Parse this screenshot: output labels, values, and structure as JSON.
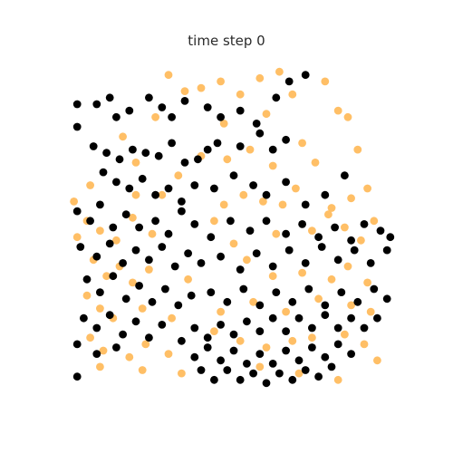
{
  "chart_data": {
    "type": "scatter",
    "title": "time step 0",
    "xlabel": "",
    "ylabel": "",
    "axes_visible": false,
    "grid": false,
    "legend": "none",
    "xlim": [
      0,
      1
    ],
    "ylim": [
      0,
      1
    ],
    "series": [
      {
        "color": "#000000",
        "points": [
          [
            0.02,
            0.88
          ],
          [
            0.08,
            0.88
          ],
          [
            0.12,
            0.9
          ],
          [
            0.14,
            0.84
          ],
          [
            0.18,
            0.86
          ],
          [
            0.24,
            0.9
          ],
          [
            0.28,
            0.87
          ],
          [
            0.31,
            0.84
          ],
          [
            0.35,
            0.89
          ],
          [
            0.42,
            0.87
          ],
          [
            0.46,
            0.84
          ],
          [
            0.52,
            0.86
          ],
          [
            0.57,
            0.82
          ],
          [
            0.63,
            0.9
          ],
          [
            0.67,
            0.95
          ],
          [
            0.72,
            0.97
          ],
          [
            0.02,
            0.81
          ],
          [
            0.07,
            0.75
          ],
          [
            0.11,
            0.73
          ],
          [
            0.15,
            0.71
          ],
          [
            0.19,
            0.74
          ],
          [
            0.23,
            0.73
          ],
          [
            0.27,
            0.72
          ],
          [
            0.31,
            0.76
          ],
          [
            0.35,
            0.7
          ],
          [
            0.39,
            0.71
          ],
          [
            0.42,
            0.74
          ],
          [
            0.45,
            0.76
          ],
          [
            0.52,
            0.75
          ],
          [
            0.58,
            0.79
          ],
          [
            0.62,
            0.74
          ],
          [
            0.66,
            0.77
          ],
          [
            0.1,
            0.67
          ],
          [
            0.14,
            0.64
          ],
          [
            0.18,
            0.62
          ],
          [
            0.22,
            0.65
          ],
          [
            0.26,
            0.6
          ],
          [
            0.3,
            0.62
          ],
          [
            0.34,
            0.58
          ],
          [
            0.38,
            0.63
          ],
          [
            0.44,
            0.62
          ],
          [
            0.5,
            0.66
          ],
          [
            0.56,
            0.63
          ],
          [
            0.6,
            0.6
          ],
          [
            0.66,
            0.64
          ],
          [
            0.72,
            0.57
          ],
          [
            0.78,
            0.6
          ],
          [
            0.84,
            0.66
          ],
          [
            0.02,
            0.55
          ],
          [
            0.06,
            0.52
          ],
          [
            0.09,
            0.57
          ],
          [
            0.13,
            0.5
          ],
          [
            0.17,
            0.54
          ],
          [
            0.21,
            0.5
          ],
          [
            0.26,
            0.52
          ],
          [
            0.3,
            0.48
          ],
          [
            0.34,
            0.55
          ],
          [
            0.38,
            0.51
          ],
          [
            0.43,
            0.47
          ],
          [
            0.49,
            0.52
          ],
          [
            0.55,
            0.49
          ],
          [
            0.6,
            0.52
          ],
          [
            0.66,
            0.48
          ],
          [
            0.71,
            0.51
          ],
          [
            0.76,
            0.47
          ],
          [
            0.81,
            0.5
          ],
          [
            0.86,
            0.46
          ],
          [
            0.9,
            0.51
          ],
          [
            0.95,
            0.49
          ],
          [
            0.98,
            0.47
          ],
          [
            0.03,
            0.44
          ],
          [
            0.08,
            0.41
          ],
          [
            0.12,
            0.45
          ],
          [
            0.16,
            0.39
          ],
          [
            0.2,
            0.43
          ],
          [
            0.24,
            0.4
          ],
          [
            0.28,
            0.44
          ],
          [
            0.32,
            0.38
          ],
          [
            0.36,
            0.42
          ],
          [
            0.4,
            0.39
          ],
          [
            0.46,
            0.41
          ],
          [
            0.52,
            0.37
          ],
          [
            0.57,
            0.42
          ],
          [
            0.62,
            0.38
          ],
          [
            0.67,
            0.43
          ],
          [
            0.72,
            0.39
          ],
          [
            0.77,
            0.44
          ],
          [
            0.82,
            0.4
          ],
          [
            0.87,
            0.43
          ],
          [
            0.92,
            0.39
          ],
          [
            0.97,
            0.43
          ],
          [
            0.05,
            0.34
          ],
          [
            0.09,
            0.3
          ],
          [
            0.13,
            0.35
          ],
          [
            0.17,
            0.28
          ],
          [
            0.21,
            0.32
          ],
          [
            0.25,
            0.27
          ],
          [
            0.29,
            0.31
          ],
          [
            0.33,
            0.26
          ],
          [
            0.37,
            0.29
          ],
          [
            0.43,
            0.3
          ],
          [
            0.48,
            0.27
          ],
          [
            0.53,
            0.31
          ],
          [
            0.58,
            0.26
          ],
          [
            0.63,
            0.3
          ],
          [
            0.68,
            0.27
          ],
          [
            0.73,
            0.31
          ],
          [
            0.78,
            0.26
          ],
          [
            0.83,
            0.3
          ],
          [
            0.88,
            0.27
          ],
          [
            0.93,
            0.31
          ],
          [
            0.97,
            0.28
          ],
          [
            0.04,
            0.22
          ],
          [
            0.08,
            0.19
          ],
          [
            0.12,
            0.23
          ],
          [
            0.16,
            0.17
          ],
          [
            0.2,
            0.21
          ],
          [
            0.24,
            0.16
          ],
          [
            0.28,
            0.2
          ],
          [
            0.34,
            0.15
          ],
          [
            0.38,
            0.19
          ],
          [
            0.42,
            0.16
          ],
          [
            0.46,
            0.2
          ],
          [
            0.5,
            0.17
          ],
          [
            0.54,
            0.21
          ],
          [
            0.58,
            0.18
          ],
          [
            0.62,
            0.22
          ],
          [
            0.66,
            0.18
          ],
          [
            0.7,
            0.22
          ],
          [
            0.74,
            0.19
          ],
          [
            0.78,
            0.23
          ],
          [
            0.82,
            0.19
          ],
          [
            0.86,
            0.22
          ],
          [
            0.9,
            0.19
          ],
          [
            0.94,
            0.22
          ],
          [
            0.02,
            0.14
          ],
          [
            0.08,
            0.11
          ],
          [
            0.14,
            0.13
          ],
          [
            0.38,
            0.1
          ],
          [
            0.42,
            0.13
          ],
          [
            0.46,
            0.09
          ],
          [
            0.5,
            0.12
          ],
          [
            0.54,
            0.08
          ],
          [
            0.58,
            0.11
          ],
          [
            0.62,
            0.08
          ],
          [
            0.66,
            0.12
          ],
          [
            0.7,
            0.09
          ],
          [
            0.74,
            0.13
          ],
          [
            0.78,
            0.1
          ],
          [
            0.82,
            0.14
          ],
          [
            0.86,
            0.11
          ],
          [
            0.02,
            0.04
          ],
          [
            0.4,
            0.06
          ],
          [
            0.44,
            0.03
          ],
          [
            0.48,
            0.06
          ],
          [
            0.52,
            0.03
          ],
          [
            0.56,
            0.05
          ],
          [
            0.6,
            0.02
          ],
          [
            0.64,
            0.05
          ],
          [
            0.68,
            0.03
          ],
          [
            0.72,
            0.06
          ],
          [
            0.76,
            0.04
          ],
          [
            0.8,
            0.07
          ]
        ]
      },
      {
        "color": "#ffbf66",
        "points": [
          [
            0.3,
            0.97
          ],
          [
            0.35,
            0.92
          ],
          [
            0.4,
            0.93
          ],
          [
            0.46,
            0.95
          ],
          [
            0.52,
            0.91
          ],
          [
            0.58,
            0.96
          ],
          [
            0.64,
            0.98
          ],
          [
            0.68,
            0.91
          ],
          [
            0.78,
            0.95
          ],
          [
            0.82,
            0.86
          ],
          [
            0.85,
            0.84
          ],
          [
            0.6,
            0.85
          ],
          [
            0.47,
            0.82
          ],
          [
            0.26,
            0.84
          ],
          [
            0.16,
            0.78
          ],
          [
            0.2,
            0.7
          ],
          [
            0.4,
            0.72
          ],
          [
            0.48,
            0.71
          ],
          [
            0.55,
            0.74
          ],
          [
            0.71,
            0.76
          ],
          [
            0.75,
            0.7
          ],
          [
            0.88,
            0.74
          ],
          [
            0.62,
            0.69
          ],
          [
            0.33,
            0.66
          ],
          [
            0.06,
            0.63
          ],
          [
            0.2,
            0.6
          ],
          [
            0.28,
            0.6
          ],
          [
            0.47,
            0.57
          ],
          [
            0.53,
            0.6
          ],
          [
            0.59,
            0.58
          ],
          [
            0.65,
            0.57
          ],
          [
            0.69,
            0.62
          ],
          [
            0.8,
            0.56
          ],
          [
            0.86,
            0.59
          ],
          [
            0.91,
            0.62
          ],
          [
            0.01,
            0.58
          ],
          [
            0.05,
            0.52
          ],
          [
            0.09,
            0.49
          ],
          [
            0.14,
            0.46
          ],
          [
            0.19,
            0.53
          ],
          [
            0.25,
            0.48
          ],
          [
            0.44,
            0.52
          ],
          [
            0.5,
            0.45
          ],
          [
            0.63,
            0.48
          ],
          [
            0.74,
            0.49
          ],
          [
            0.79,
            0.54
          ],
          [
            0.84,
            0.5
          ],
          [
            0.89,
            0.46
          ],
          [
            0.93,
            0.52
          ],
          [
            0.02,
            0.47
          ],
          [
            0.07,
            0.4
          ],
          [
            0.11,
            0.35
          ],
          [
            0.15,
            0.38
          ],
          [
            0.19,
            0.33
          ],
          [
            0.24,
            0.37
          ],
          [
            0.36,
            0.34
          ],
          [
            0.54,
            0.4
          ],
          [
            0.62,
            0.35
          ],
          [
            0.71,
            0.36
          ],
          [
            0.8,
            0.34
          ],
          [
            0.85,
            0.38
          ],
          [
            0.91,
            0.33
          ],
          [
            0.05,
            0.29
          ],
          [
            0.09,
            0.25
          ],
          [
            0.13,
            0.22
          ],
          [
            0.22,
            0.25
          ],
          [
            0.31,
            0.22
          ],
          [
            0.46,
            0.24
          ],
          [
            0.56,
            0.27
          ],
          [
            0.66,
            0.24
          ],
          [
            0.76,
            0.28
          ],
          [
            0.86,
            0.26
          ],
          [
            0.92,
            0.24
          ],
          [
            0.06,
            0.16
          ],
          [
            0.1,
            0.12
          ],
          [
            0.18,
            0.1
          ],
          [
            0.23,
            0.14
          ],
          [
            0.3,
            0.11
          ],
          [
            0.44,
            0.18
          ],
          [
            0.52,
            0.15
          ],
          [
            0.6,
            0.13
          ],
          [
            0.68,
            0.15
          ],
          [
            0.74,
            0.16
          ],
          [
            0.84,
            0.17
          ],
          [
            0.9,
            0.14
          ],
          [
            0.09,
            0.07
          ],
          [
            0.22,
            0.06
          ],
          [
            0.34,
            0.05
          ],
          [
            0.58,
            0.07
          ],
          [
            0.7,
            0.05
          ],
          [
            0.82,
            0.03
          ],
          [
            0.94,
            0.09
          ]
        ]
      }
    ]
  }
}
